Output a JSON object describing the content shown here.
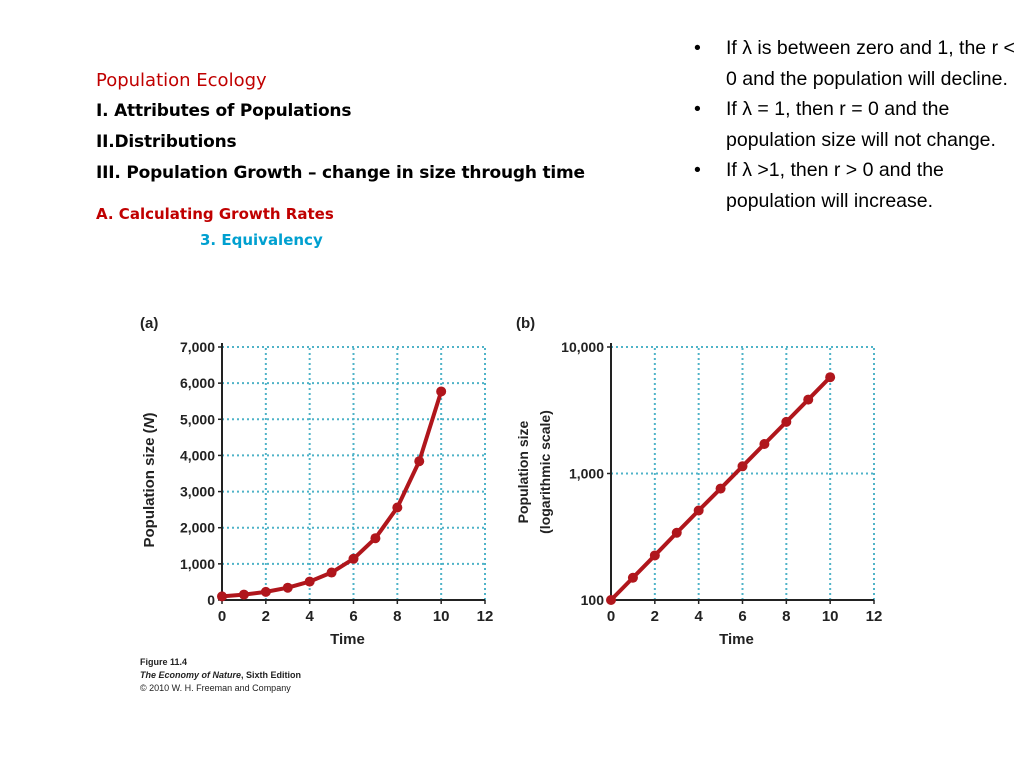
{
  "outline": {
    "title": "Population Ecology",
    "headings": [
      "I. Attributes of Populations",
      "II.Distributions",
      "III. Population Growth – change in size through time"
    ],
    "subheading": "A. Calculating Growth Rates",
    "subsubheading": "3. Equivalency"
  },
  "bullets": [
    "If λ is between zero and 1, the r < 0 and the population will decline.",
    "If λ = 1, then r = 0 and the population size will not change.",
    "If λ >1, then r > 0 and the population will increase."
  ],
  "bullet_symbol": "•",
  "caption": {
    "figure": "Figure 11.4",
    "book": "The Economy of Nature",
    "edition": ", Sixth Edition",
    "copyright": "© 2010 W. H. Freeman and Company"
  },
  "colors": {
    "series": "#b0161c",
    "grid": "#4fb3c8",
    "title_red": "#c00000",
    "sub_blue": "#00a0d0"
  },
  "chart_data": [
    {
      "type": "line",
      "panel_label": "(a)",
      "xlabel": "Time",
      "ylabel": "Population size (N)",
      "xlim": [
        0,
        12
      ],
      "ylim": [
        0,
        7000
      ],
      "xticks": [
        "0",
        "2",
        "4",
        "6",
        "8",
        "10",
        "12"
      ],
      "yticks": [
        "0",
        "1,000",
        "2,000",
        "3,000",
        "4,000",
        "5,000",
        "6,000",
        "7,000"
      ],
      "grid": true,
      "x": [
        0,
        1,
        2,
        3,
        4,
        5,
        6,
        7,
        8,
        9,
        10
      ],
      "y": [
        100,
        150,
        225,
        340,
        510,
        760,
        1140,
        1710,
        2560,
        3840,
        5770
      ]
    },
    {
      "type": "line",
      "panel_label": "(b)",
      "xlabel": "Time",
      "ylabel": "Population size",
      "ylabel2": "(logarithmic scale)",
      "xlim": [
        0,
        12
      ],
      "ylim": [
        100,
        10000
      ],
      "yscale": "log",
      "xticks": [
        "0",
        "2",
        "4",
        "6",
        "8",
        "10",
        "12"
      ],
      "yticks": [
        "100",
        "1,000",
        "10,000"
      ],
      "grid": true,
      "x": [
        0,
        1,
        2,
        3,
        4,
        5,
        6,
        7,
        8,
        9,
        10
      ],
      "y": [
        100,
        150,
        225,
        340,
        510,
        760,
        1140,
        1710,
        2560,
        3840,
        5770
      ]
    }
  ]
}
